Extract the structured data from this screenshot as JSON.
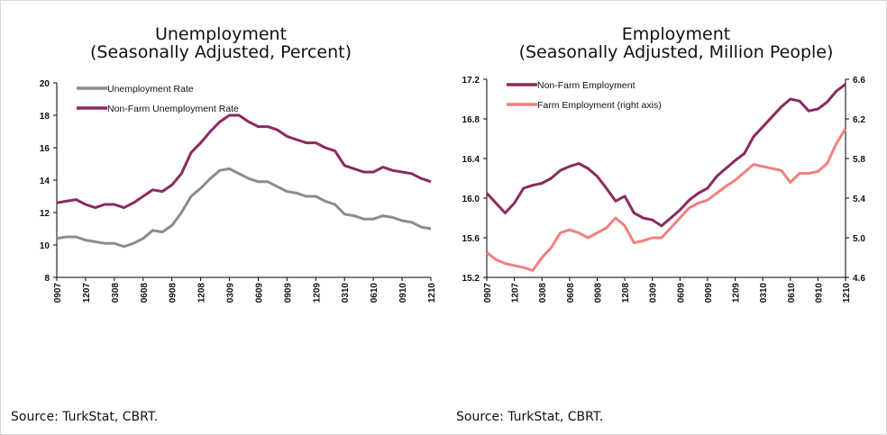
{
  "chart_data": [
    {
      "type": "line",
      "title": "Unemployment",
      "subtitle": "(Seasonally Adjusted, Percent)",
      "source": "Source: TurkStat, CBRT.",
      "categories": [
        "0907",
        null,
        null,
        "1207",
        null,
        null,
        "0308",
        null,
        null,
        "0608",
        null,
        null,
        "0908",
        null,
        null,
        "1208",
        null,
        null,
        "0309",
        null,
        null,
        "0609",
        null,
        null,
        "0909",
        null,
        null,
        "1209",
        null,
        null,
        "0310",
        null,
        null,
        "0610",
        null,
        null,
        "0910",
        null,
        null,
        "1210"
      ],
      "ylim": [
        8,
        20
      ],
      "yticks": [
        8,
        10,
        12,
        14,
        16,
        18,
        20
      ],
      "legend": "upper left",
      "series": [
        {
          "name": "Unemployment Rate",
          "color": "#8c8c8c",
          "values": [
            10.4,
            10.5,
            10.5,
            10.3,
            10.2,
            10.1,
            10.1,
            9.9,
            10.1,
            10.4,
            10.9,
            10.8,
            11.2,
            12.0,
            13.0,
            13.5,
            14.1,
            14.6,
            14.7,
            14.4,
            14.1,
            13.9,
            13.9,
            13.6,
            13.3,
            13.2,
            13.0,
            13.0,
            12.7,
            12.5,
            11.9,
            11.8,
            11.6,
            11.6,
            11.8,
            11.7,
            11.5,
            11.4,
            11.1,
            11.0
          ]
        },
        {
          "name": "Non-Farm Unemployment Rate",
          "color": "#8b2a5e",
          "values": [
            12.6,
            12.7,
            12.8,
            12.5,
            12.3,
            12.5,
            12.5,
            12.3,
            12.6,
            13.0,
            13.4,
            13.3,
            13.7,
            14.4,
            15.7,
            16.3,
            17.0,
            17.6,
            18.0,
            18.0,
            17.6,
            17.3,
            17.3,
            17.1,
            16.7,
            16.5,
            16.3,
            16.3,
            16.0,
            15.8,
            14.9,
            14.7,
            14.5,
            14.5,
            14.8,
            14.6,
            14.5,
            14.4,
            14.1,
            13.9
          ]
        }
      ]
    },
    {
      "type": "line",
      "title": "Employment",
      "subtitle": "(Seasonally Adjusted, Million People)",
      "source": "Source: TurkStat, CBRT.",
      "categories": [
        "0907",
        null,
        null,
        "1207",
        null,
        null,
        "0308",
        null,
        null,
        "0608",
        null,
        null,
        "0908",
        null,
        null,
        "1208",
        null,
        null,
        "0309",
        null,
        null,
        "0609",
        null,
        null,
        "0909",
        null,
        null,
        "1209",
        null,
        null,
        "0310",
        null,
        null,
        "0610",
        null,
        null,
        "0910",
        null,
        null,
        "1210"
      ],
      "ylim": [
        15.2,
        17.2
      ],
      "yticks": [
        15.2,
        15.6,
        {
          "value": 16,
          "label": "16.0"
        },
        16.4,
        16.8,
        17.2
      ],
      "y2lim": [
        4.6,
        6.6
      ],
      "y2ticks": [
        4.6,
        {
          "value": 5,
          "label": "5.0"
        },
        5.4,
        5.8,
        6.2,
        6.6
      ],
      "legend": "upper left",
      "series": [
        {
          "name": "Non-Farm Employment",
          "color": "#8b2a5e",
          "values": [
            16.05,
            15.95,
            15.85,
            15.95,
            16.1,
            16.13,
            16.15,
            16.2,
            16.28,
            16.32,
            16.35,
            16.3,
            16.22,
            16.1,
            15.97,
            16.02,
            15.85,
            15.8,
            15.78,
            15.72,
            15.8,
            15.88,
            15.98,
            16.05,
            16.1,
            16.22,
            16.3,
            16.38,
            16.45,
            16.62,
            16.72,
            16.82,
            16.92,
            17.0,
            16.98,
            16.88,
            16.9,
            16.97,
            17.08,
            17.15
          ]
        },
        {
          "name": "Farm Employment (right axis)",
          "color": "#f08080",
          "axis": "y2",
          "values": [
            4.85,
            4.78,
            4.74,
            4.72,
            4.7,
            4.67,
            4.8,
            4.9,
            5.05,
            5.08,
            5.05,
            5.0,
            5.05,
            5.1,
            5.2,
            5.12,
            4.95,
            4.97,
            5.0,
            5.0,
            5.1,
            5.2,
            5.3,
            5.35,
            5.38,
            5.45,
            5.52,
            5.58,
            5.66,
            5.74,
            5.72,
            5.7,
            5.68,
            5.56,
            5.65,
            5.65,
            5.67,
            5.75,
            5.95,
            6.1
          ]
        }
      ]
    }
  ]
}
